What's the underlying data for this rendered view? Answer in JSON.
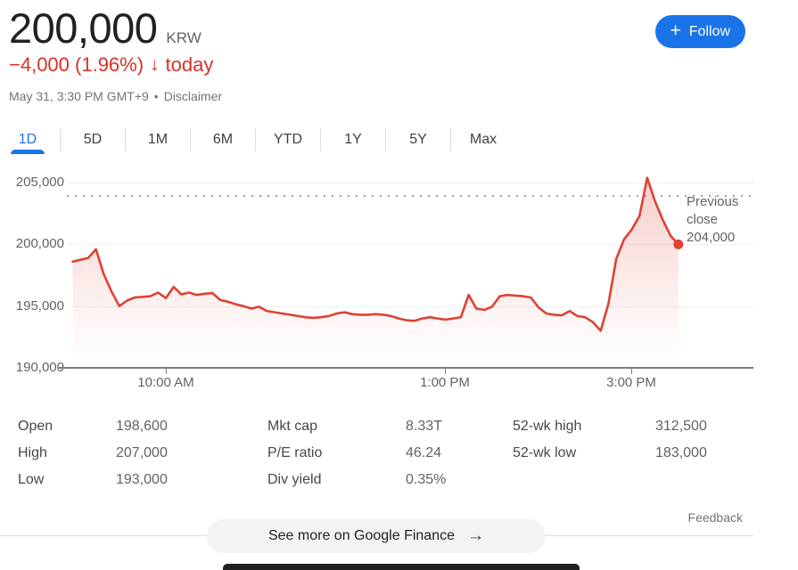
{
  "header": {
    "price": "200,000",
    "currency": "KRW",
    "change": "−4,000 (1.96%)",
    "change_arrow": "↓",
    "change_period": "today",
    "change_direction": "down",
    "datetime": "May 31, 3:30 PM GMT+9",
    "separator": "•",
    "disclaimer": "Disclaimer",
    "follow_plus": "+",
    "follow_label": "Follow"
  },
  "tabs": [
    "1D",
    "5D",
    "1M",
    "6M",
    "YTD",
    "1Y",
    "5Y",
    "Max"
  ],
  "active_tab": "1D",
  "chart": {
    "y_labels": [
      "205,000",
      "200,000",
      "195,000",
      "190,000"
    ],
    "x_labels": [
      "10:00 AM",
      "1:00 PM",
      "3:00 PM"
    ],
    "previous_close_label": "Previous close",
    "previous_close_value": "204,000"
  },
  "chart_data": {
    "type": "area",
    "title": "1D intraday price, KRW",
    "x_start": "09:00",
    "x_end": "15:30",
    "interval_minutes": 5,
    "values": [
      198600,
      198750,
      198900,
      199600,
      197600,
      196200,
      195000,
      195450,
      195700,
      195750,
      195800,
      196100,
      195650,
      196550,
      195950,
      196100,
      195900,
      196000,
      196050,
      195500,
      195350,
      195150,
      195000,
      194800,
      194950,
      194600,
      194500,
      194400,
      194300,
      194200,
      194100,
      194050,
      194100,
      194200,
      194400,
      194500,
      194350,
      194300,
      194300,
      194350,
      194300,
      194200,
      194000,
      193850,
      193800,
      194000,
      194100,
      194000,
      193900,
      194000,
      194100,
      195900,
      194800,
      194700,
      194950,
      195800,
      195900,
      195850,
      195800,
      195700,
      194900,
      194400,
      194300,
      194250,
      194600,
      194200,
      194100,
      193700,
      193000,
      195200,
      198800,
      200400,
      201200,
      202300,
      205400,
      203500,
      202000,
      200700,
      200000
    ],
    "previous_close": 204000,
    "last_price": 200000,
    "open": 198600,
    "day_low_shown": 193000,
    "ylim": [
      190000,
      206500
    ],
    "y_ticks": [
      190000,
      195000,
      200000,
      205000
    ],
    "x_tick_times": [
      "10:00",
      "13:00",
      "15:00"
    ],
    "grid": "horizontal",
    "legend": "none",
    "line_color": "#dd4234",
    "fill_color": "#dd4234"
  },
  "stats": {
    "columns": [
      {
        "rows": [
          {
            "label": "Open",
            "value": "198,600"
          },
          {
            "label": "High",
            "value": "207,000"
          },
          {
            "label": "Low",
            "value": "193,000"
          }
        ]
      },
      {
        "rows": [
          {
            "label": "Mkt cap",
            "value": "8.33T"
          },
          {
            "label": "P/E ratio",
            "value": "46.24"
          },
          {
            "label": "Div yield",
            "value": "0.35%"
          }
        ]
      },
      {
        "rows": [
          {
            "label": "52-wk high",
            "value": "312,500"
          },
          {
            "label": "52-wk low",
            "value": "183,000"
          }
        ]
      }
    ]
  },
  "footer": {
    "feedback": "Feedback",
    "see_more": "See more on Google Finance",
    "arrow": "→"
  },
  "colors": {
    "accent_blue": "#1a73e8",
    "down_red": "#d93025",
    "line_red": "#dd4234",
    "grid_gray": "#edeff2",
    "axis_gray": "#797d82",
    "text_gray": "#5f6368"
  }
}
